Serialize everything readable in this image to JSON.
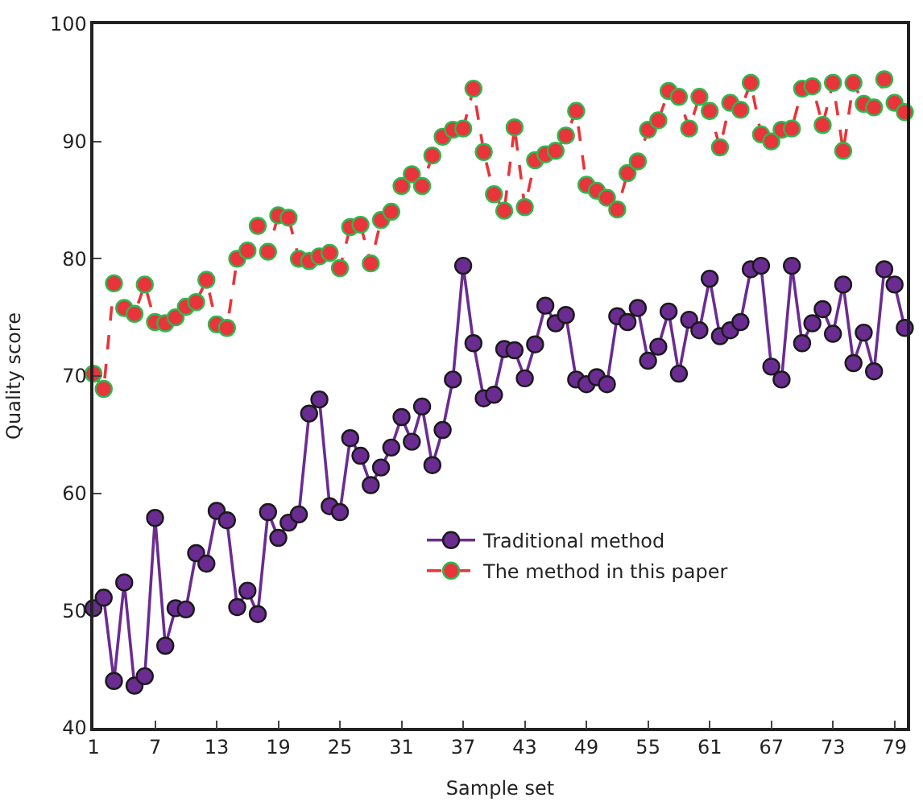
{
  "chart_data": {
    "type": "line",
    "xlabel": "Sample set",
    "ylabel": "Quality score",
    "x": [
      1,
      2,
      3,
      4,
      5,
      6,
      7,
      8,
      9,
      10,
      11,
      12,
      13,
      14,
      15,
      16,
      17,
      18,
      19,
      20,
      21,
      22,
      23,
      24,
      25,
      26,
      27,
      28,
      29,
      30,
      31,
      32,
      33,
      34,
      35,
      36,
      37,
      38,
      39,
      40,
      41,
      42,
      43,
      44,
      45,
      46,
      47,
      48,
      49,
      50,
      51,
      52,
      53,
      54,
      55,
      56,
      57,
      58,
      59,
      60,
      61,
      62,
      63,
      64,
      65,
      66,
      67,
      68,
      69,
      70,
      71,
      72,
      73,
      74,
      75,
      76,
      77,
      78,
      79,
      80
    ],
    "series": [
      {
        "name": "Traditional method",
        "color": "#6a2c91",
        "line_style": "solid",
        "values": [
          50.2,
          51.1,
          44.0,
          52.4,
          43.6,
          44.4,
          57.9,
          47.0,
          50.2,
          50.1,
          54.9,
          54.0,
          58.5,
          57.7,
          50.3,
          51.7,
          49.7,
          58.4,
          56.2,
          57.5,
          58.2,
          66.8,
          68.0,
          58.9,
          58.4,
          64.7,
          63.2,
          60.7,
          62.2,
          63.9,
          66.5,
          64.4,
          67.4,
          62.4,
          65.4,
          69.7,
          79.4,
          72.8,
          68.1,
          68.4,
          72.3,
          72.2,
          69.8,
          72.7,
          76.0,
          74.5,
          75.2,
          69.7,
          69.3,
          69.9,
          69.3,
          75.1,
          74.6,
          75.8,
          71.3,
          72.5,
          75.5,
          70.2,
          74.8,
          73.9,
          78.3,
          73.4,
          73.9,
          74.6,
          79.1,
          79.4,
          70.8,
          69.7,
          79.4,
          72.8,
          74.5,
          75.7,
          73.6,
          77.8,
          71.1,
          73.7,
          70.4,
          79.1,
          77.8,
          74.1
        ]
      },
      {
        "name": "The method in this paper",
        "color": "#e8343a",
        "line_style": "dashed",
        "values": [
          70.2,
          68.9,
          77.9,
          75.8,
          75.3,
          77.8,
          74.6,
          74.5,
          75.0,
          75.9,
          76.3,
          78.2,
          74.4,
          74.1,
          80.0,
          80.7,
          82.8,
          80.6,
          83.7,
          83.5,
          80.0,
          79.8,
          80.2,
          80.5,
          79.2,
          82.7,
          82.9,
          79.6,
          83.3,
          84.0,
          86.2,
          87.2,
          86.2,
          88.8,
          90.4,
          91.0,
          91.1,
          94.5,
          89.1,
          85.5,
          84.1,
          91.2,
          84.4,
          88.4,
          88.9,
          89.2,
          90.5,
          92.6,
          86.3,
          85.8,
          85.2,
          84.2,
          87.3,
          88.3,
          91.0,
          91.8,
          94.3,
          93.8,
          91.1,
          93.8,
          92.6,
          89.5,
          93.3,
          92.7,
          95.0,
          90.6,
          90.0,
          91.0,
          91.1,
          94.5,
          94.7,
          91.4,
          95.0,
          89.2,
          95.0,
          93.2,
          92.9,
          95.3,
          93.3,
          92.5
        ]
      }
    ],
    "xlim": [
      1,
      80.2
    ],
    "xticks": [
      1,
      7,
      13,
      19,
      25,
      31,
      37,
      43,
      49,
      55,
      61,
      67,
      73,
      79
    ],
    "ylim": [
      40,
      100
    ],
    "yticks": [
      40,
      50,
      60,
      70,
      80,
      90,
      100
    ],
    "marker": "circle",
    "legend": "bottom right"
  }
}
